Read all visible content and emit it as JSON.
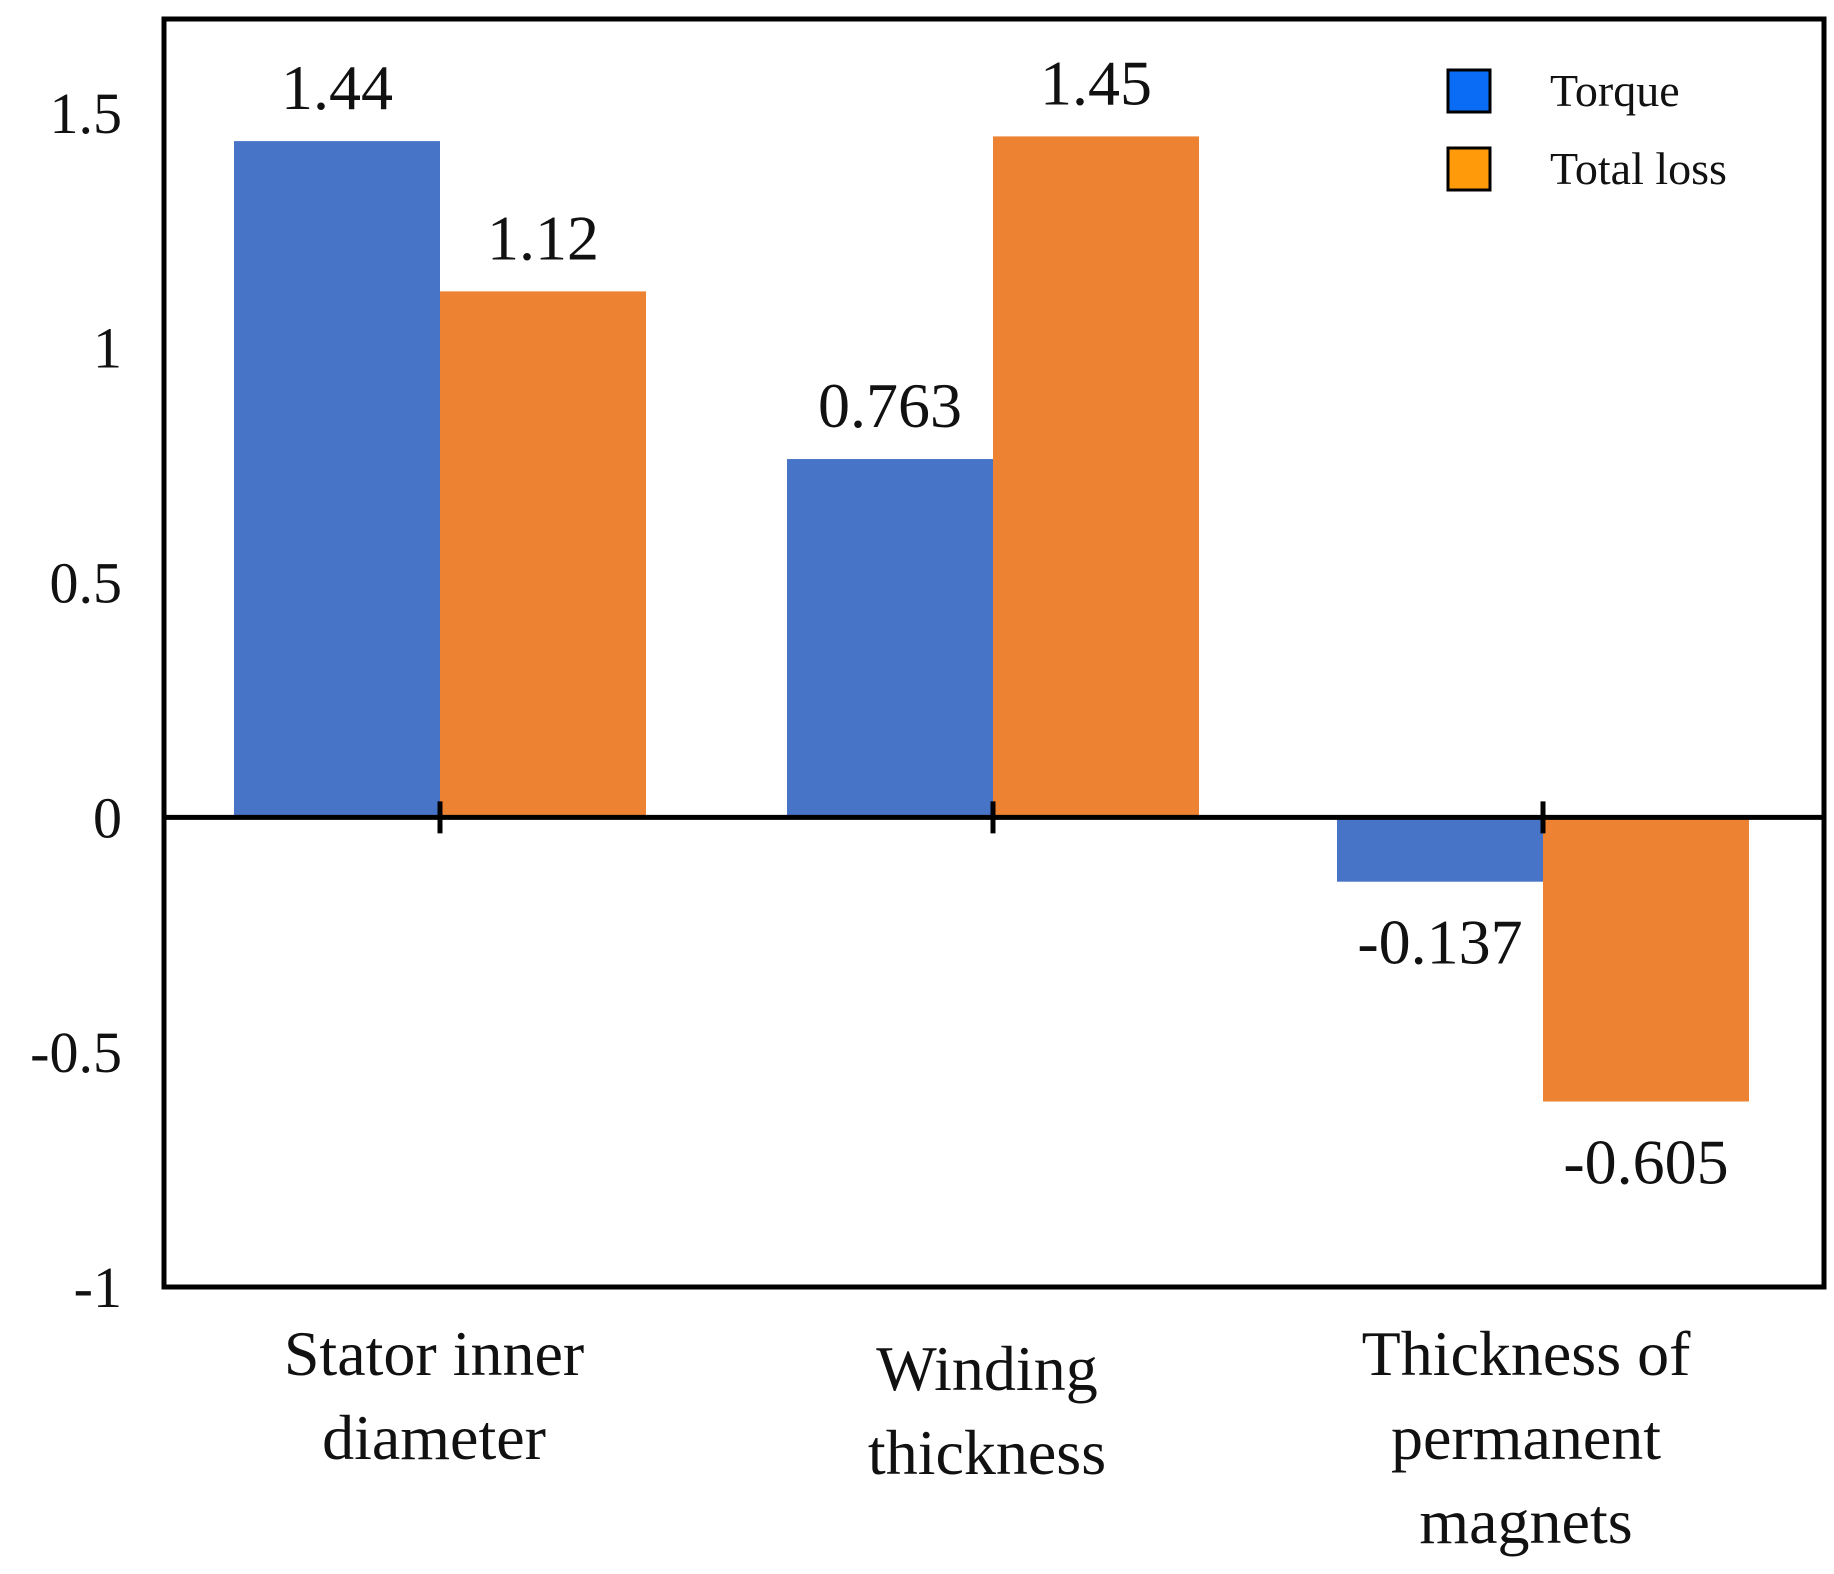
{
  "chart_data": {
    "type": "bar",
    "categories": [
      [
        "Stator inner",
        "diameter"
      ],
      [
        "Winding",
        "thickness"
      ],
      [
        "Thickness of",
        "permanent",
        "magnets"
      ]
    ],
    "series": [
      {
        "name": "Torque",
        "values": [
          1.44,
          0.763,
          -0.137
        ],
        "labels": [
          "1.44",
          "0.763",
          "-0.137"
        ],
        "color": "#4874c8"
      },
      {
        "name": "Total loss",
        "values": [
          1.12,
          1.45,
          -0.605
        ],
        "labels": [
          "1.12",
          "1.45",
          "-0.605"
        ],
        "color": "#ed8233"
      }
    ],
    "legend_colors": [
      "#0a6cf5",
      "#ff9a0a"
    ],
    "ylim": [
      -1,
      1.7
    ],
    "yticks": [
      -1,
      -0.5,
      0,
      0.5,
      1,
      1.5
    ],
    "ytick_labels": [
      "-1",
      "-0.5",
      "0",
      "0.5",
      "1",
      "1.5"
    ],
    "grid": false,
    "legend_position": "top-right"
  }
}
